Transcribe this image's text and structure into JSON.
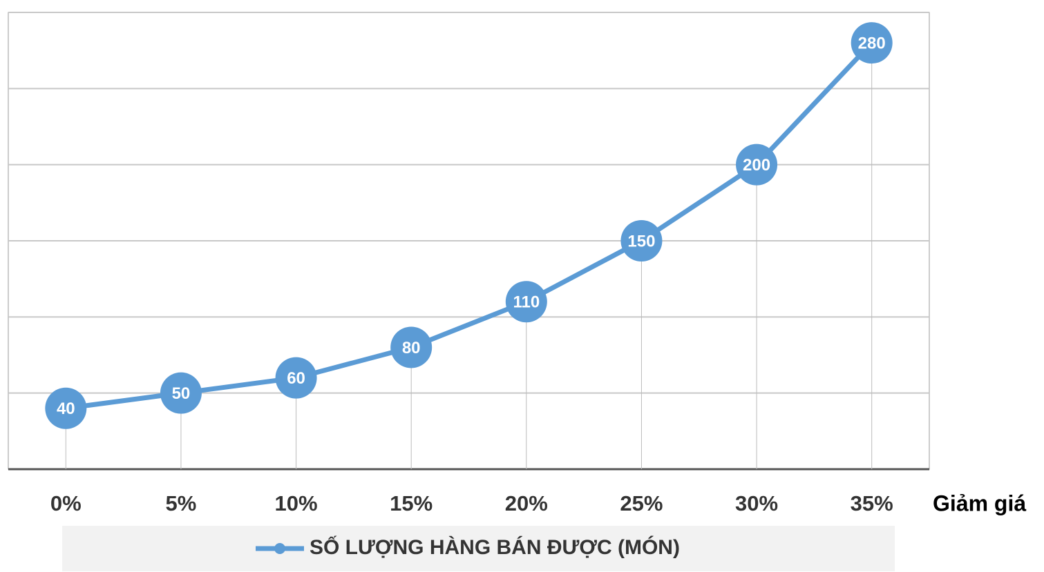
{
  "chart_data": {
    "type": "line",
    "x_label": "Giảm giá",
    "categories": [
      "0%",
      "5%",
      "10%",
      "15%",
      "20%",
      "25%",
      "30%",
      "35%"
    ],
    "series": [
      {
        "name": "SỐ LƯỢNG HÀNG BÁN ĐƯỢC (MÓN)",
        "color": "#5b9bd5",
        "values": [
          40,
          50,
          60,
          80,
          110,
          150,
          200,
          280
        ]
      }
    ],
    "ylim": [
      0,
      300
    ],
    "yticks": [
      0,
      50,
      100,
      150,
      200,
      250,
      300
    ],
    "grid": true,
    "legend": "bottom"
  }
}
